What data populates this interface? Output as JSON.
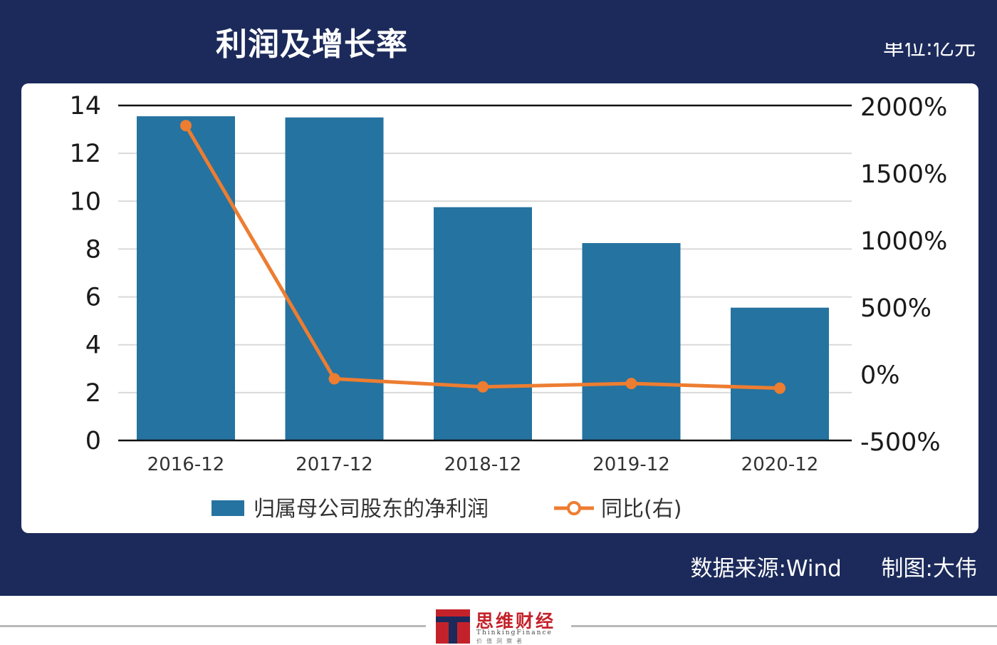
{
  "header": {
    "title": "利润及增长率",
    "unit": "单位:亿元"
  },
  "footer": {
    "source": "数据来源:Wind",
    "author": "制图:大伟"
  },
  "brand": {
    "name": "思维财经",
    "english": "ThinkingFinance",
    "motto": "价值洞察者"
  },
  "colors": {
    "frame": "#1b2a5a",
    "bar": "#2573a0",
    "line": "#ed7d31",
    "brand_red": "#c4222a"
  },
  "chart_data": {
    "type": "bar",
    "categories": [
      "2016-12",
      "2017-12",
      "2018-12",
      "2019-12",
      "2020-12"
    ],
    "series": [
      {
        "name": "归属母公司股东的净利润",
        "type": "bar",
        "axis": "left",
        "values": [
          13.55,
          13.5,
          9.75,
          8.25,
          5.55
        ]
      },
      {
        "name": "同比(右)",
        "type": "line",
        "axis": "right",
        "values": [
          1850,
          -40,
          -100,
          -75,
          -110
        ]
      }
    ],
    "left_axis": {
      "ylim": [
        0,
        14
      ],
      "ticks": [
        "0",
        "2",
        "4",
        "6",
        "8",
        "10",
        "12",
        "14"
      ]
    },
    "right_axis": {
      "ylim": [
        -500,
        2000
      ],
      "ticks": [
        "-500%",
        "0%",
        "500%",
        "1000%",
        "1500%",
        "2000%"
      ]
    },
    "grid": true,
    "legend": "bottom"
  }
}
